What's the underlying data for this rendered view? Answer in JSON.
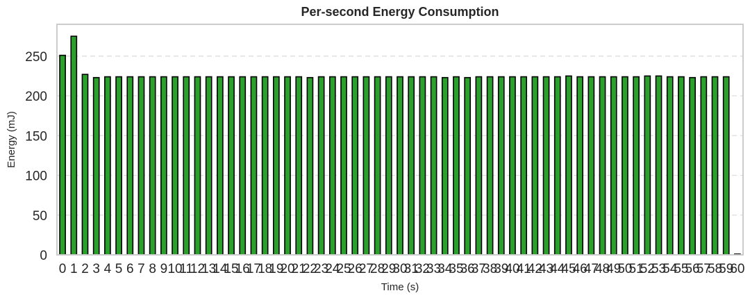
{
  "chart_data": {
    "type": "bar",
    "title": "Per-second Energy Consumption",
    "xlabel": "Time (s)",
    "ylabel": "Energy (mJ)",
    "categories": [
      "0",
      "1",
      "2",
      "3",
      "4",
      "5",
      "6",
      "7",
      "8",
      "9",
      "10",
      "11",
      "12",
      "13",
      "14",
      "15",
      "16",
      "17",
      "18",
      "19",
      "20",
      "21",
      "22",
      "23",
      "24",
      "25",
      "26",
      "27",
      "28",
      "29",
      "30",
      "31",
      "32",
      "33",
      "34",
      "35",
      "36",
      "37",
      "38",
      "39",
      "40",
      "41",
      "42",
      "43",
      "44",
      "45",
      "46",
      "47",
      "48",
      "49",
      "50",
      "51",
      "52",
      "53",
      "54",
      "55",
      "56",
      "57",
      "58",
      "59",
      "60"
    ],
    "values": [
      251,
      275,
      227,
      223,
      224,
      224,
      224,
      224,
      224,
      224,
      224,
      224,
      224,
      224,
      224,
      224,
      224,
      224,
      224,
      224,
      224,
      224,
      223,
      224,
      224,
      224,
      224,
      224,
      224,
      224,
      224,
      224,
      224,
      224,
      223,
      224,
      223,
      224,
      224,
      224,
      224,
      224,
      224,
      224,
      224,
      225,
      224,
      224,
      224,
      224,
      224,
      224,
      225,
      225,
      224,
      224,
      223,
      224,
      224,
      224,
      1
    ],
    "ylim": [
      0,
      290
    ],
    "yticks": [
      0,
      50,
      100,
      150,
      200,
      250
    ],
    "grid": "y-dashed",
    "legend": "none",
    "colors": {
      "bar_fill": "#2ca02c",
      "last_bar_fill": "#999999",
      "bar_edge": "#000000",
      "grid": "#dddddd",
      "frame": "#cccccc",
      "text": "#262626"
    }
  }
}
